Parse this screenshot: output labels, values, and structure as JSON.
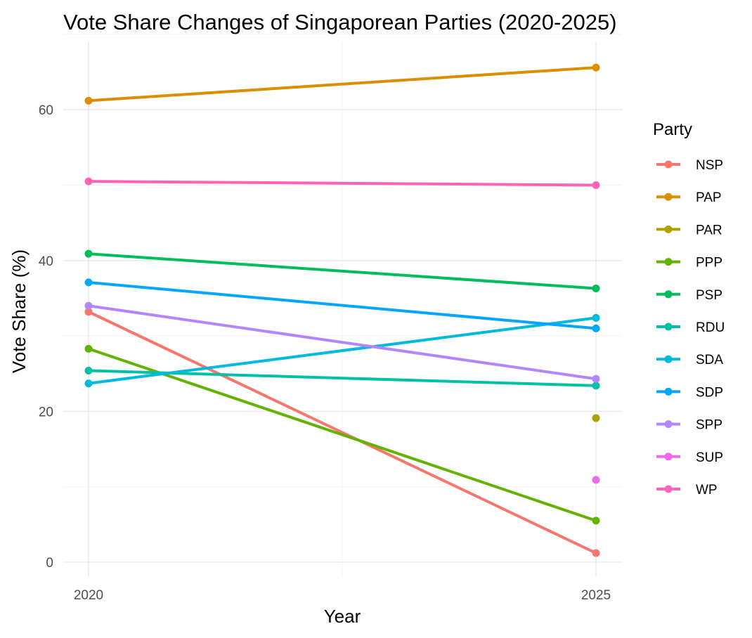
{
  "chart_data": {
    "type": "line",
    "title": "Vote Share Changes of Singaporean Parties (2020-2025)",
    "xlabel": "Year",
    "ylabel": "Vote Share (%)",
    "x": [
      2020,
      2025
    ],
    "x_tick_labels": [
      "2020",
      "2025"
    ],
    "y_ticks": [
      0,
      20,
      40,
      60
    ],
    "y_tick_labels": [
      "0",
      "20",
      "40",
      "60"
    ],
    "ylim": [
      -2,
      69
    ],
    "grid": true,
    "legend": {
      "title": "Party",
      "placement": "right"
    },
    "series": [
      {
        "name": "NSP",
        "color": "#F8766D",
        "values": [
          33.2,
          1.2
        ]
      },
      {
        "name": "PAP",
        "color": "#DB8E00",
        "values": [
          61.2,
          65.6
        ]
      },
      {
        "name": "PAR",
        "color": "#AEA200",
        "values": [
          null,
          19.1
        ]
      },
      {
        "name": "PPP",
        "color": "#64B200",
        "values": [
          28.3,
          5.5
        ]
      },
      {
        "name": "PSP",
        "color": "#00BD5C",
        "values": [
          40.9,
          36.3
        ]
      },
      {
        "name": "RDU",
        "color": "#00C1A7",
        "values": [
          25.4,
          23.4
        ]
      },
      {
        "name": "SDA",
        "color": "#00BADE",
        "values": [
          23.7,
          32.4
        ]
      },
      {
        "name": "SDP",
        "color": "#00A6FF",
        "values": [
          37.1,
          31.0
        ]
      },
      {
        "name": "SPP",
        "color": "#B385FF",
        "values": [
          34.0,
          24.3
        ]
      },
      {
        "name": "SUP",
        "color": "#EF67EB",
        "values": [
          null,
          10.9
        ]
      },
      {
        "name": "WP",
        "color": "#FF63B6",
        "values": [
          50.5,
          50.0
        ]
      }
    ]
  }
}
